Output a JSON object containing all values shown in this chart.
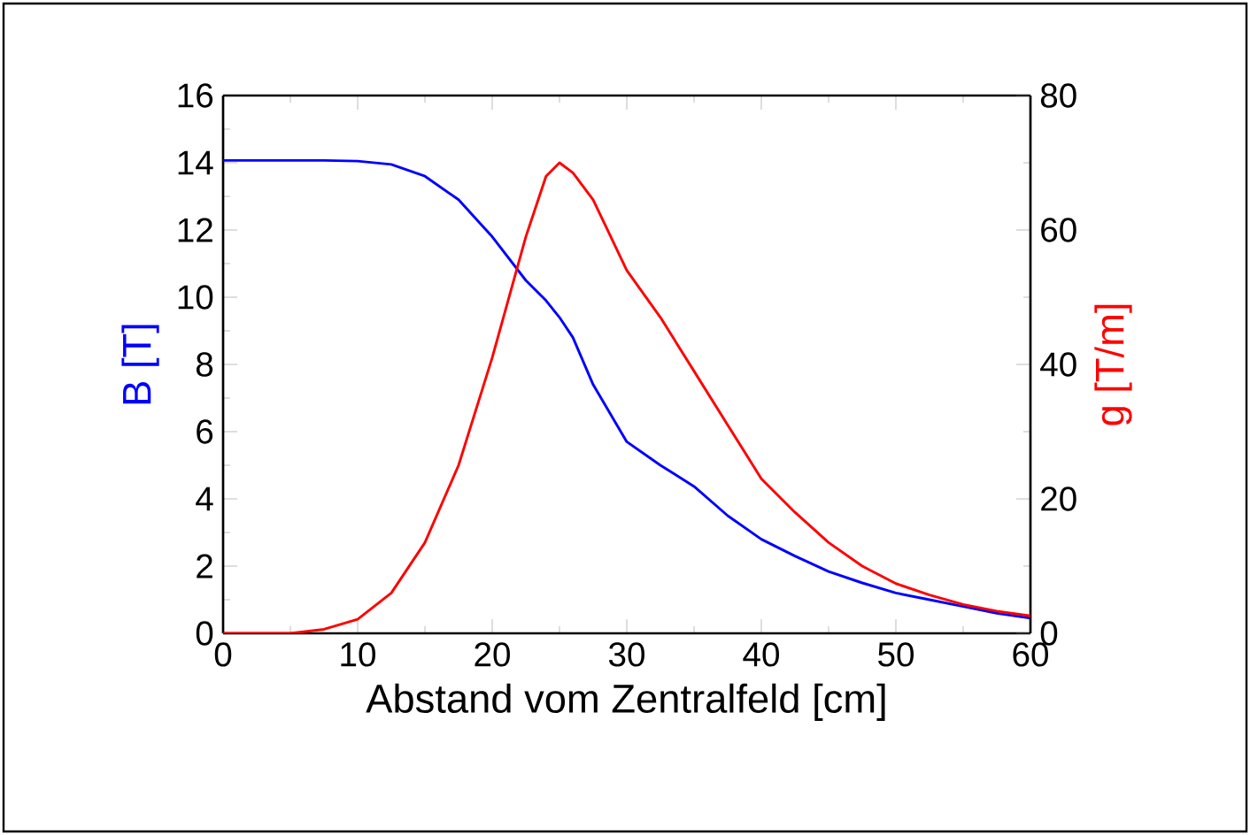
{
  "chart_data": {
    "type": "line",
    "xlabel": "Abstand vom Zentralfeld [cm]",
    "ylabel": "B [T]",
    "y2label": "g [T/m]",
    "x": [
      0,
      5,
      7.5,
      10,
      12.5,
      15,
      17.5,
      20,
      22.5,
      24,
      25,
      26,
      27.5,
      30,
      32.5,
      35,
      37.5,
      40,
      42.5,
      45,
      47.5,
      50,
      52.5,
      55,
      57.5,
      60
    ],
    "series": [
      {
        "color": "#0000ff",
        "values": [
          14.07,
          14.07,
          14.07,
          14.05,
          13.95,
          13.6,
          12.9,
          11.8,
          10.5,
          9.9,
          9.4,
          8.8,
          7.4,
          5.7,
          5.0,
          4.37,
          3.5,
          2.8,
          2.3,
          1.84,
          1.5,
          1.2,
          1.0,
          0.8,
          0.6,
          0.45
        ]
      },
      {
        "color": "#ff0000",
        "axis": "y2",
        "values": [
          0,
          0,
          0.6,
          2.1,
          6,
          13.5,
          25,
          41,
          59,
          68,
          70,
          68.5,
          64.5,
          54,
          47,
          39,
          31,
          23,
          18,
          13.5,
          10,
          7.4,
          5.7,
          4.3,
          3.3,
          2.6
        ]
      }
    ],
    "xlim": [
      0,
      60
    ],
    "xticks": [
      0,
      10,
      20,
      30,
      40,
      50,
      60
    ],
    "ylim": [
      0,
      16
    ],
    "yticks": [
      0,
      2,
      4,
      6,
      8,
      10,
      12,
      14,
      16
    ],
    "y2lim": [
      0,
      80
    ],
    "y2ticks": [
      0,
      20,
      40,
      60,
      80
    ],
    "grid": false,
    "marker": "none",
    "line_style": "solid"
  }
}
